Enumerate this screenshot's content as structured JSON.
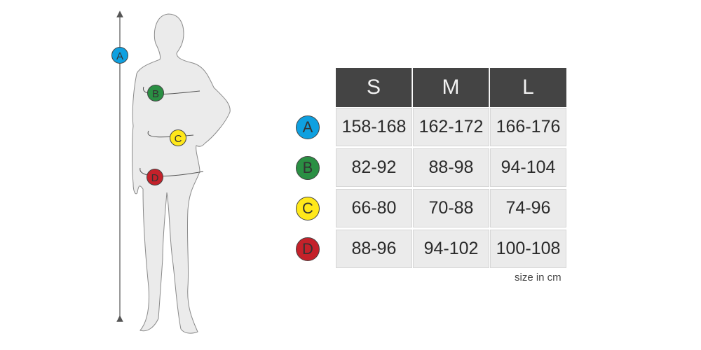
{
  "sizes": [
    "S",
    "M",
    "L"
  ],
  "rows": [
    {
      "label": "A",
      "color": "#0ea0e0",
      "values": [
        "158-168",
        "162-172",
        "166-176"
      ]
    },
    {
      "label": "B",
      "color": "#2a8f43",
      "values": [
        "82-92",
        "88-98",
        "94-104"
      ]
    },
    {
      "label": "C",
      "color": "#ffe81a",
      "values": [
        "66-80",
        "70-88",
        "74-96"
      ]
    },
    {
      "label": "D",
      "color": "#c4212a",
      "values": [
        "88-96",
        "94-102",
        "100-108"
      ]
    }
  ],
  "unit_note": "size in cm"
}
